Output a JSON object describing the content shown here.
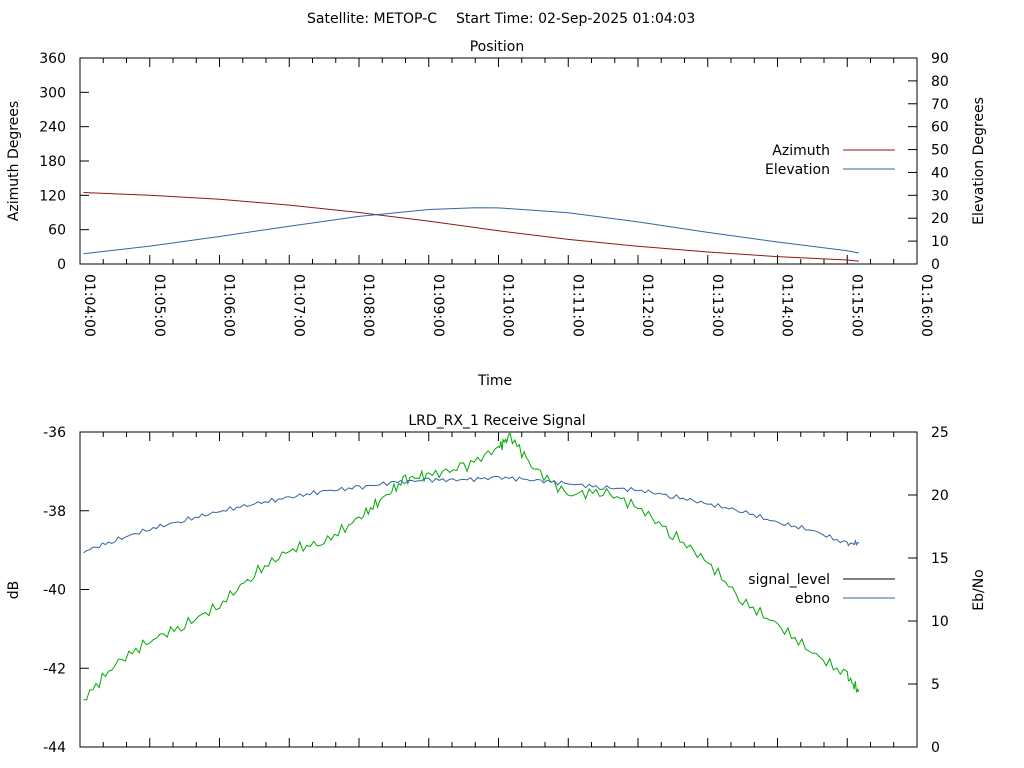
{
  "header": {
    "satellite": "Satellite: METOP-C",
    "start_time": "Start Time: 02-Sep-2025 01:04:03"
  },
  "chart_data": [
    {
      "type": "line",
      "title": "Position",
      "xlabel": "Time",
      "ylabel": "Azimuth Degrees",
      "y2label": "Elevation Degrees",
      "x_ticks": [
        "01:04:00",
        "01:05:00",
        "01:06:00",
        "01:07:00",
        "01:08:00",
        "01:09:00",
        "01:10:00",
        "01:11:00",
        "01:12:00",
        "01:13:00",
        "01:14:00",
        "01:15:00",
        "01:16:00"
      ],
      "xlim": [
        "01:04:00",
        "01:16:00"
      ],
      "ylim": [
        0,
        360
      ],
      "y_ticks": [
        "0",
        "60",
        "120",
        "180",
        "240",
        "300",
        "360"
      ],
      "y2lim": [
        0,
        90
      ],
      "y2_ticks": [
        "0",
        "10",
        "20",
        "30",
        "40",
        "50",
        "60",
        "70",
        "80",
        "90"
      ],
      "legend_position": "right",
      "series": [
        {
          "name": "Azimuth",
          "axis": "left",
          "color": "#8b1a1a",
          "x": [
            "01:04:03",
            "01:05:00",
            "01:06:00",
            "01:07:00",
            "01:08:00",
            "01:09:00",
            "01:10:00",
            "01:11:00",
            "01:12:00",
            "01:13:00",
            "01:14:00",
            "01:15:00",
            "01:15:10"
          ],
          "y": [
            125,
            120,
            113,
            103,
            90,
            75,
            58,
            43,
            31,
            21,
            13,
            7,
            5
          ]
        },
        {
          "name": "Elevation",
          "axis": "right",
          "color": "#3465a4",
          "x": [
            "01:04:03",
            "01:05:00",
            "01:06:00",
            "01:07:00",
            "01:08:00",
            "01:09:00",
            "01:09:40",
            "01:10:00",
            "01:11:00",
            "01:12:00",
            "01:13:00",
            "01:14:00",
            "01:15:00",
            "01:15:10"
          ],
          "y": [
            4.5,
            7.8,
            12,
            16.5,
            20.8,
            23.8,
            24.6,
            24.5,
            22.4,
            18.4,
            13.8,
            9.6,
            5.8,
            4.8
          ]
        }
      ]
    },
    {
      "type": "line",
      "title": "LRD_RX_1 Receive Signal",
      "ylabel": "dB",
      "y2label": "Eb/No",
      "xlim": [
        "01:04:00",
        "01:16:00"
      ],
      "ylim": [
        -44,
        -36
      ],
      "y_ticks": [
        "-44",
        "-42",
        "-40",
        "-38",
        "-36"
      ],
      "y2lim": [
        0,
        25
      ],
      "y2_ticks": [
        "0",
        "5",
        "10",
        "15",
        "20",
        "25"
      ],
      "legend_position": "right",
      "series": [
        {
          "name": "signal_level",
          "axis": "left",
          "color": "#00aa00",
          "x": [
            "01:04:03",
            "01:04:30",
            "01:05:00",
            "01:05:30",
            "01:06:00",
            "01:06:30",
            "01:07:00",
            "01:07:30",
            "01:08:00",
            "01:08:20",
            "01:08:40",
            "01:09:00",
            "01:09:30",
            "01:10:00",
            "01:10:10",
            "01:10:30",
            "01:11:00",
            "01:11:30",
            "01:12:00",
            "01:12:30",
            "01:13:00",
            "01:13:30",
            "01:14:00",
            "01:14:30",
            "01:15:00",
            "01:15:10"
          ],
          "y": [
            -42.8,
            -41.9,
            -41.3,
            -40.9,
            -40.4,
            -39.6,
            -39.0,
            -38.8,
            -38.2,
            -37.7,
            -37.2,
            -37.1,
            -36.9,
            -36.4,
            -36.1,
            -36.9,
            -37.6,
            -37.5,
            -37.9,
            -38.6,
            -39.3,
            -40.3,
            -40.9,
            -41.6,
            -42.2,
            -42.6
          ]
        },
        {
          "name": "ebno",
          "axis": "right",
          "color": "#3465a4",
          "x": [
            "01:04:03",
            "01:04:30",
            "01:05:00",
            "01:05:30",
            "01:06:00",
            "01:06:30",
            "01:07:00",
            "01:07:30",
            "01:08:00",
            "01:08:30",
            "01:09:00",
            "01:09:30",
            "01:10:00",
            "01:10:30",
            "01:11:00",
            "01:11:30",
            "01:12:00",
            "01:12:30",
            "01:13:00",
            "01:13:30",
            "01:14:00",
            "01:14:30",
            "01:15:00",
            "01:15:10"
          ],
          "y": [
            15.5,
            16.4,
            17.3,
            18.0,
            18.7,
            19.3,
            19.8,
            20.3,
            20.6,
            21.0,
            21.2,
            21.2,
            21.4,
            21.2,
            20.9,
            20.6,
            20.4,
            19.9,
            19.3,
            18.7,
            17.8,
            17.2,
            16.1,
            16.2
          ]
        }
      ]
    }
  ]
}
